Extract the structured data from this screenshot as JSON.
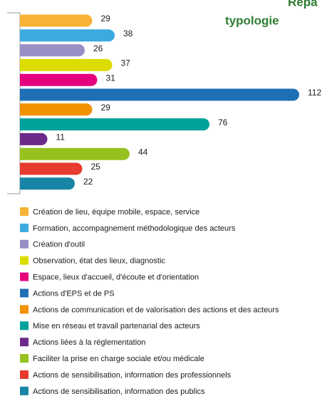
{
  "chart_data": {
    "type": "bar",
    "orientation": "horizontal",
    "title": [
      "Répa",
      "typologie"
    ],
    "categories": [
      "Création de lieu, équipe mobile, espace, service",
      "Formation, accompagnement méthodologique des acteurs",
      "Création d'outil",
      "Observation, état des lieux, diagnostic",
      "Espace, lieux d'accueil, d'écoute et d'orientation",
      "Actions d'EPS et de PS",
      "Actions de communication et de valorisation des actions et des acteurs",
      "Mise en réseau et travail partenarial des acteurs",
      "Actions liées à la réglementation",
      "Faciliter la prise en charge sociale et/ou médicale",
      "Actions de sensibilisation, information des professionnels",
      "Actions de sensibilisation, information des publics"
    ],
    "values": [
      29,
      38,
      26,
      37,
      31,
      112,
      29,
      76,
      11,
      44,
      25,
      22
    ],
    "colors": [
      "#f7b335",
      "#3daadf",
      "#9a8fc4",
      "#dcdc00",
      "#e5007d",
      "#1f6fb4",
      "#f39200",
      "#00a19a",
      "#6b2a8a",
      "#97c11f",
      "#e63b2e",
      "#1985a6"
    ]
  }
}
